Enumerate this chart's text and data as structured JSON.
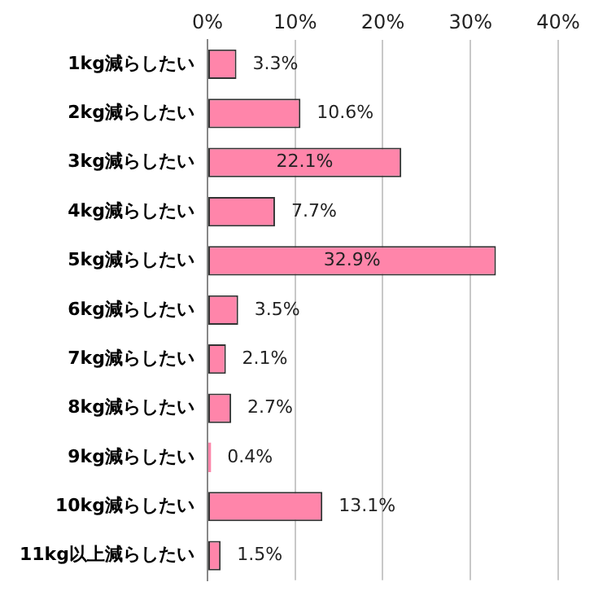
{
  "chart_data": {
    "type": "bar",
    "orientation": "horizontal",
    "categories": [
      "1kg減らしたい",
      "2kg減らしたい",
      "3kg減らしたい",
      "4kg減らしたい",
      "5kg減らしたい",
      "6kg減らしたい",
      "7kg減らしたい",
      "8kg減らしたい",
      "9kg減らしたい",
      "10kg減らしたい",
      "11kg以上減らしたい"
    ],
    "values": [
      3.3,
      10.6,
      22.1,
      7.7,
      32.9,
      3.5,
      2.1,
      2.7,
      0.4,
      13.1,
      1.5
    ],
    "value_labels": [
      "3.3%",
      "10.6%",
      "22.1%",
      "7.7%",
      "32.9%",
      "3.5%",
      "2.1%",
      "2.7%",
      "0.4%",
      "13.1%",
      "1.5%"
    ],
    "color": "#ff85aa",
    "xlim": [
      0,
      40
    ],
    "xticks": [
      {
        "value": 0,
        "label": "0%"
      },
      {
        "value": 10,
        "label": "10%"
      },
      {
        "value": 20,
        "label": "20%"
      },
      {
        "value": 30,
        "label": "30%"
      },
      {
        "value": 40,
        "label": "40%"
      }
    ],
    "grid": "x",
    "legend": false
  }
}
